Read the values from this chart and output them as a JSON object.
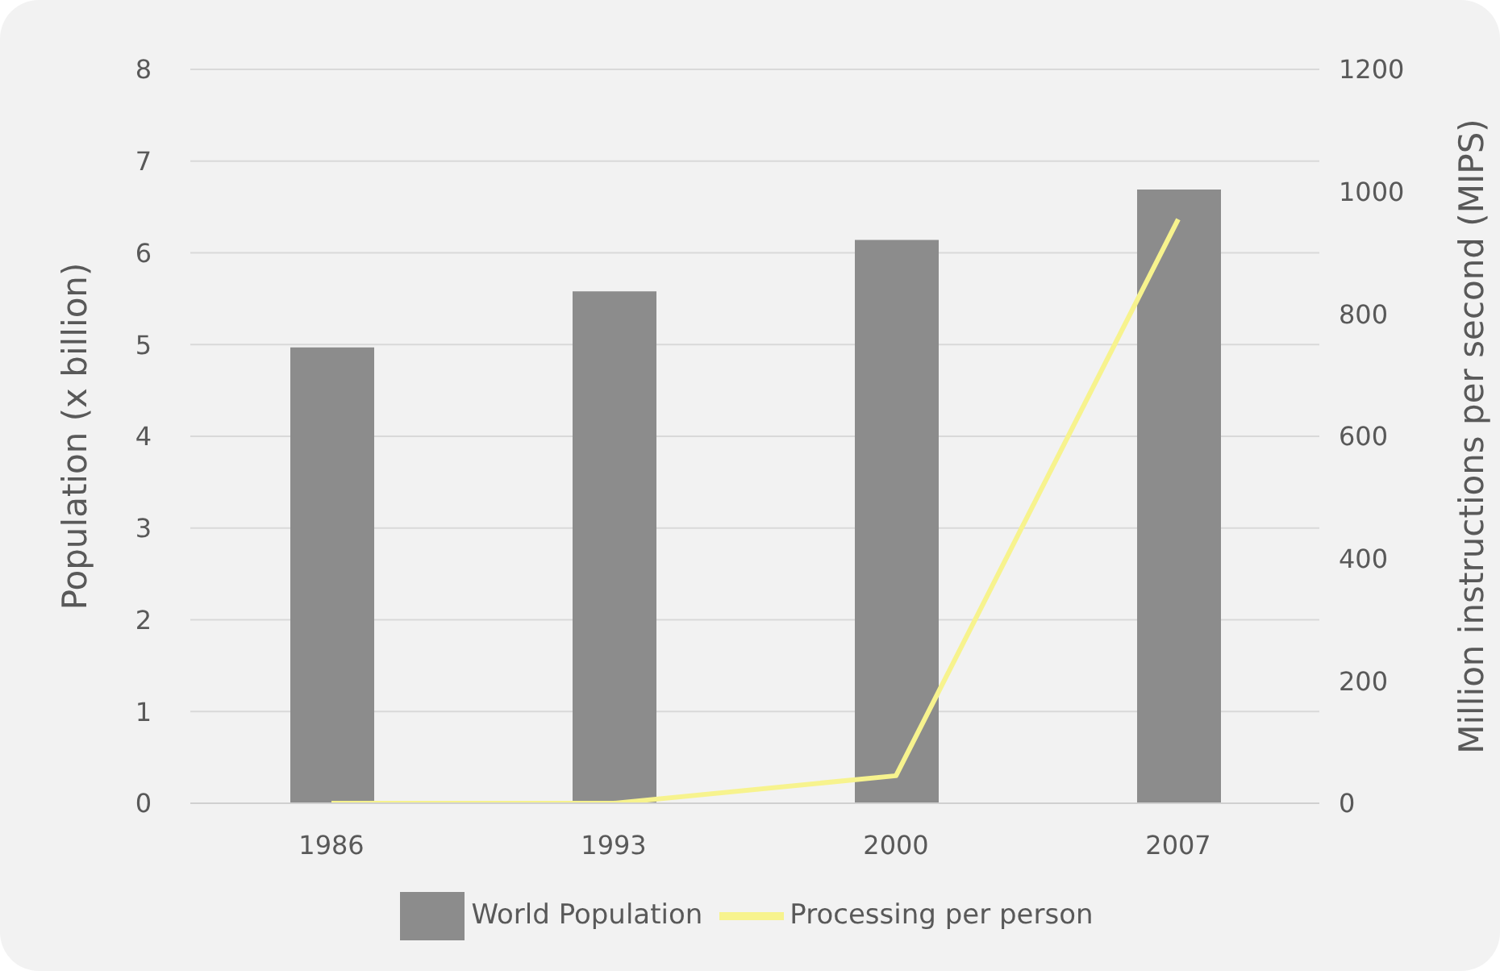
{
  "chart_data": {
    "type": "bar",
    "xlabel": null,
    "ylabel": "Population (x billion)",
    "y2label": "Million instructions per second (MIPS)",
    "categories": [
      "1986",
      "1993",
      "2000",
      "2007"
    ],
    "series": [
      {
        "name": "World Population",
        "color": "#8c8c8c",
        "values": [
          4.97,
          5.58,
          6.14,
          6.69
        ]
      },
      {
        "name": "Processing per person",
        "type": "line",
        "axis": "y2",
        "color": "#f7f38e",
        "values": [
          0,
          0,
          45,
          955
        ]
      }
    ],
    "ylim": [
      0,
      8
    ],
    "yticks": [
      0,
      1,
      2,
      3,
      4,
      5,
      6,
      7,
      8
    ],
    "y2lim": [
      0,
      1200
    ],
    "y2ticks": [
      0,
      200,
      400,
      600,
      800,
      1000,
      1200
    ],
    "grid": "y",
    "legend": "bottom"
  }
}
